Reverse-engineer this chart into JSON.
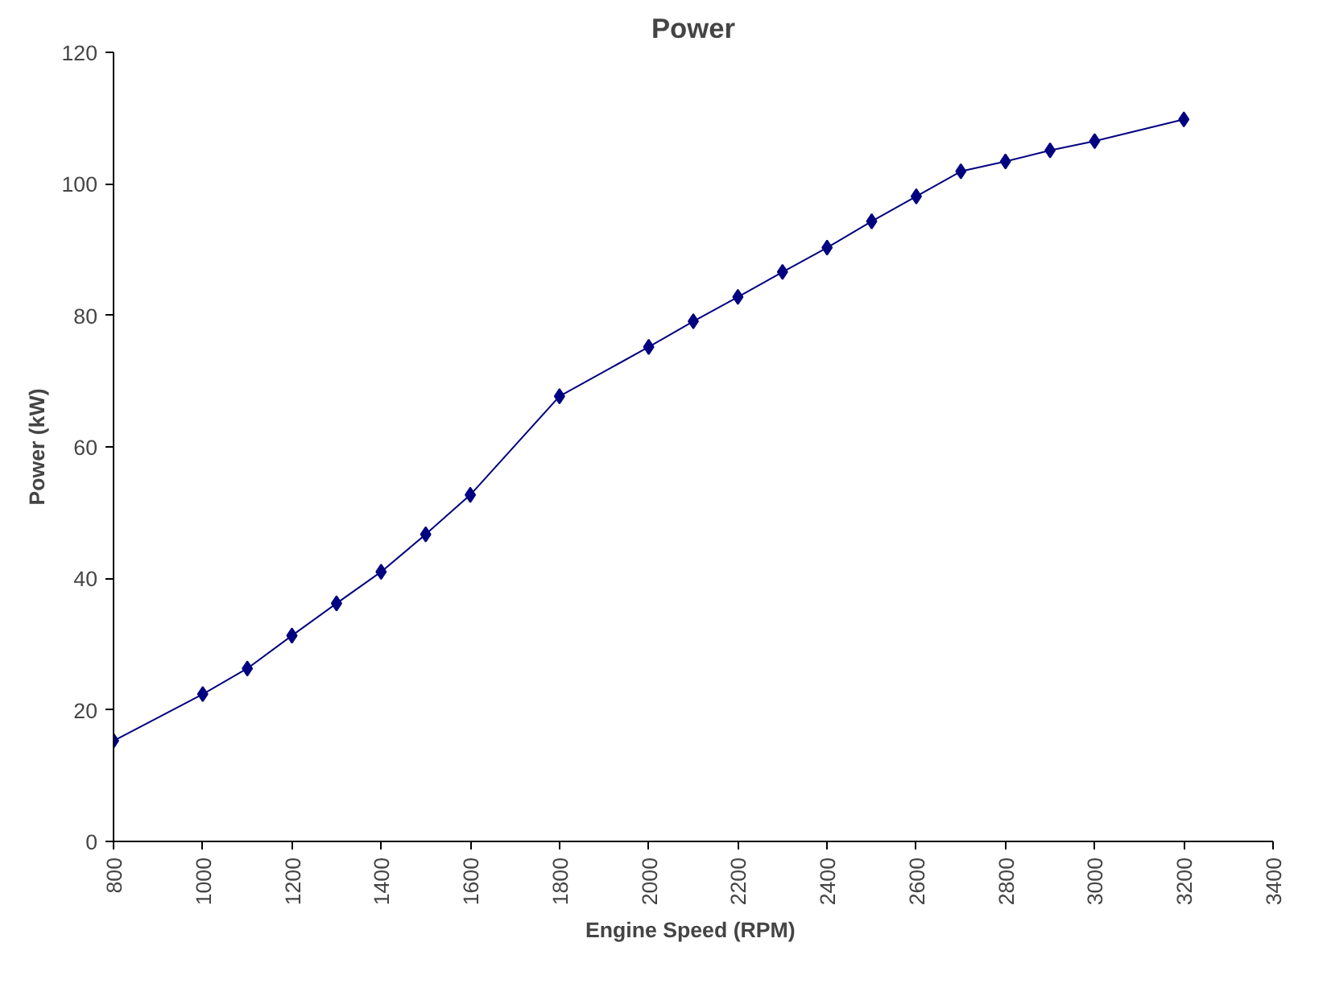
{
  "chart_data": {
    "type": "line",
    "title": "Power",
    "xlabel": "Engine Speed  (RPM)",
    "ylabel": "Power (kW)",
    "x": [
      800,
      1000,
      1100,
      1200,
      1300,
      1400,
      1500,
      1600,
      1800,
      2000,
      2100,
      2200,
      2300,
      2400,
      2500,
      2600,
      2700,
      2800,
      2900,
      3000,
      3200
    ],
    "series": [
      {
        "color": "#000080",
        "values": [
          15.3,
          22.4,
          26.3,
          31.3,
          36.2,
          41.0,
          46.7,
          52.7,
          67.7,
          75.2,
          79.1,
          82.8,
          86.6,
          90.3,
          94.3,
          98.1,
          101.9,
          103.4,
          105.1,
          106.5,
          109.8
        ]
      }
    ],
    "xlim": [
      800,
      3400
    ],
    "xticks": [
      800,
      1000,
      1200,
      1400,
      1600,
      1800,
      2000,
      2200,
      2400,
      2600,
      2800,
      3000,
      3200,
      3400
    ],
    "ylim": [
      0,
      120
    ],
    "yticks": [
      0,
      20,
      40,
      60,
      80,
      100,
      120
    ],
    "grid": false,
    "marker": "diamond",
    "line_style": "solid"
  }
}
